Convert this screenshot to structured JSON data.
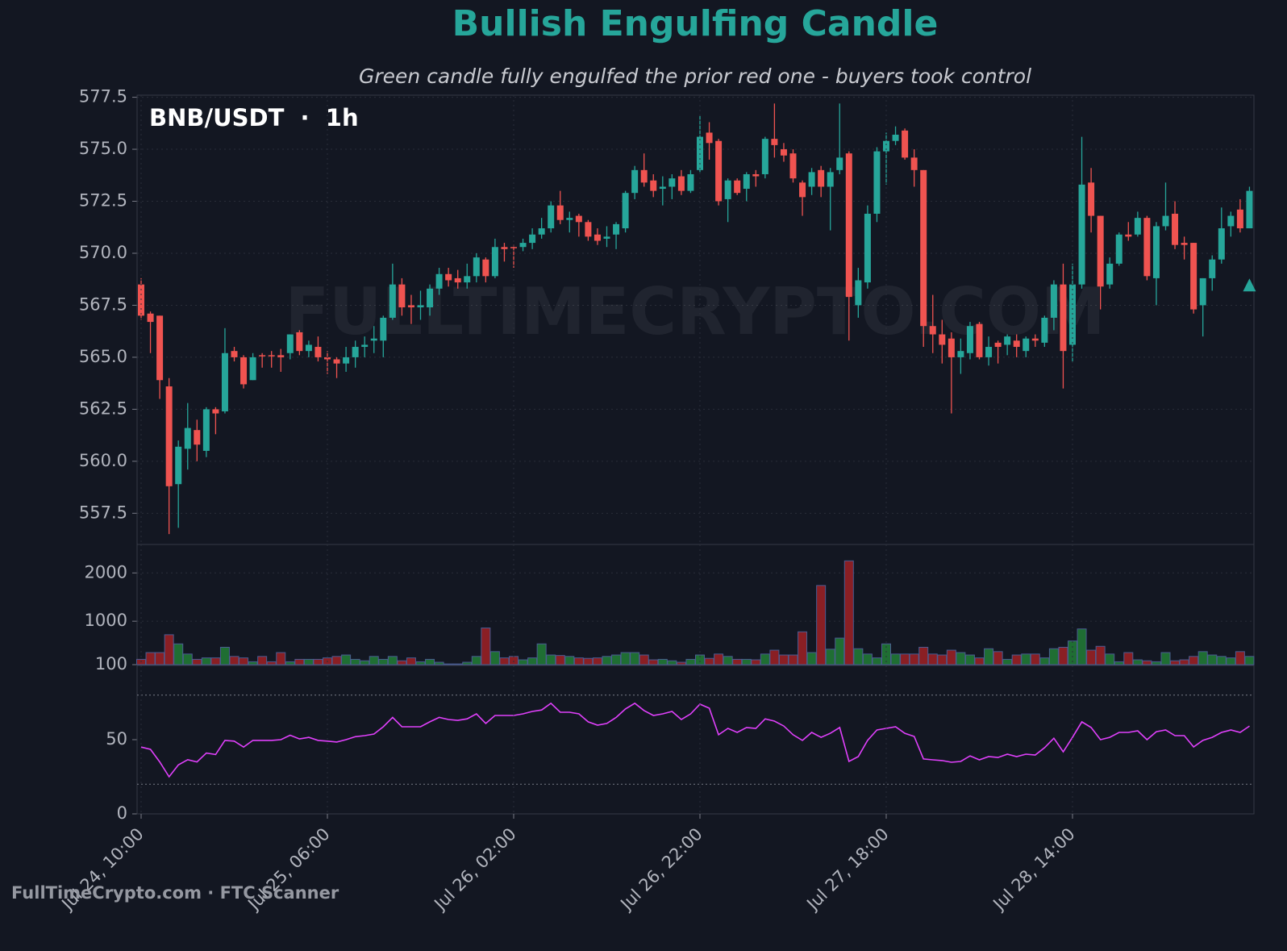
{
  "title": "Bullish Engulfing Candle",
  "subtitle": "Green candle fully engulfed the prior red one - buyers took control",
  "footer": "FullTimeCrypto.com · FTC Scanner",
  "chart_data": [
    {
      "type": "candlestick",
      "label": "BNB/USDT  ·  1h",
      "watermark": "FULLTIMECRYPTO.COM",
      "open": [
        568.5,
        567.1,
        567.0,
        563.6,
        558.9,
        560.6,
        561.5,
        560.5,
        562.5,
        562.4,
        565.3,
        565.0,
        563.9,
        565.1,
        565.1,
        565.1,
        565.2,
        566.2,
        565.3,
        565.5,
        565.0,
        564.9,
        564.7,
        565.0,
        565.5,
        565.8,
        565.8,
        566.9,
        568.5,
        567.5,
        567.4,
        567.4,
        568.3,
        569.0,
        568.8,
        568.6,
        568.9,
        569.7,
        568.9,
        570.3,
        570.3,
        570.3,
        570.5,
        570.9,
        571.2,
        572.3,
        571.6,
        571.8,
        571.5,
        570.9,
        570.7,
        570.9,
        571.2,
        572.9,
        574.0,
        573.5,
        573.1,
        573.2,
        573.7,
        573.0,
        574.0,
        575.8,
        575.4,
        572.6,
        573.5,
        573.1,
        573.8,
        573.8,
        575.5,
        575.0,
        574.8,
        573.4,
        573.2,
        574.0,
        573.2,
        574.0,
        574.8,
        567.5,
        568.6,
        571.9,
        574.9,
        575.4,
        575.9,
        574.6,
        574.0,
        566.5,
        566.1,
        565.9,
        565.0,
        565.2,
        566.6,
        565.0,
        565.7,
        565.6,
        565.8,
        565.3,
        565.9,
        565.7,
        566.9,
        568.5,
        565.6,
        568.5,
        573.4,
        571.8,
        568.5,
        569.5,
        570.9,
        570.9,
        571.7,
        568.8,
        571.3,
        571.9,
        570.5,
        570.5,
        567.5,
        568.8,
        569.7,
        571.3,
        572.1,
        571.2
      ],
      "high": [
        568.8,
        567.2,
        567.0,
        564.0,
        561.0,
        562.8,
        562.0,
        562.6,
        562.6,
        566.4,
        565.5,
        565.1,
        565.2,
        565.2,
        565.3,
        565.4,
        566.1,
        566.3,
        565.8,
        566.0,
        565.3,
        565.0,
        565.5,
        565.8,
        566.0,
        566.5,
        567.0,
        569.5,
        568.8,
        568.0,
        568.2,
        568.5,
        569.3,
        569.3,
        569.2,
        569.5,
        570.0,
        569.8,
        570.7,
        570.5,
        570.4,
        570.7,
        571.2,
        571.7,
        572.5,
        573.0,
        572.0,
        571.9,
        571.6,
        571.2,
        571.3,
        571.5,
        573.0,
        574.2,
        574.8,
        573.8,
        573.7,
        573.8,
        574.0,
        574.0,
        576.6,
        576.3,
        575.5,
        573.6,
        573.6,
        573.9,
        574.0,
        575.6,
        577.2,
        575.3,
        575.0,
        573.5,
        574.1,
        574.2,
        574.1,
        577.2,
        574.9,
        569.3,
        572.3,
        575.1,
        575.8,
        576.1,
        576.0,
        575.0,
        574.0,
        568.0,
        566.8,
        566.2,
        565.9,
        566.7,
        566.7,
        566.0,
        565.8,
        566.1,
        566.1,
        566.0,
        566.1,
        567.0,
        568.7,
        569.5,
        569.5,
        575.6,
        574.1,
        571.8,
        569.8,
        571.0,
        571.5,
        572.0,
        571.8,
        571.5,
        573.4,
        572.5,
        570.8,
        570.5,
        568.8,
        569.9,
        572.2,
        572.0,
        572.6,
        573.2
      ],
      "low": [
        566.8,
        565.2,
        563.0,
        556.5,
        556.8,
        559.6,
        560.0,
        560.2,
        561.3,
        562.3,
        564.8,
        563.5,
        563.9,
        564.5,
        564.5,
        564.3,
        564.9,
        565.1,
        565.0,
        564.8,
        564.2,
        564.0,
        564.3,
        564.5,
        565.0,
        565.2,
        565.0,
        566.8,
        567.0,
        566.6,
        566.8,
        567.0,
        568.0,
        568.4,
        568.3,
        568.3,
        568.6,
        568.6,
        568.8,
        569.6,
        569.3,
        570.1,
        570.2,
        570.7,
        571.0,
        571.4,
        571.0,
        570.8,
        570.6,
        570.4,
        570.3,
        570.2,
        571.0,
        572.6,
        573.2,
        572.7,
        572.3,
        572.6,
        572.8,
        572.9,
        573.9,
        574.5,
        572.3,
        571.5,
        572.8,
        572.5,
        573.2,
        573.6,
        574.6,
        574.4,
        573.4,
        571.8,
        572.8,
        572.7,
        571.1,
        573.8,
        565.8,
        566.9,
        568.3,
        571.5,
        573.3,
        575.2,
        574.5,
        573.2,
        565.5,
        565.2,
        564.7,
        562.3,
        564.2,
        564.9,
        564.9,
        564.6,
        564.7,
        565.1,
        565.0,
        565.0,
        565.5,
        565.5,
        566.3,
        563.5,
        564.8,
        568.3,
        571.0,
        567.3,
        568.3,
        569.4,
        570.6,
        570.8,
        568.7,
        567.5,
        571.1,
        570.2,
        569.7,
        567.1,
        566.0,
        568.2,
        569.5,
        570.8,
        571.0,
        571.2
      ],
      "close": [
        567.0,
        566.7,
        563.9,
        558.8,
        560.7,
        561.6,
        560.8,
        562.5,
        562.3,
        565.2,
        565.0,
        563.7,
        565.0,
        565.05,
        565.05,
        565.0,
        566.1,
        565.3,
        565.6,
        565.0,
        564.9,
        564.7,
        565.0,
        565.5,
        565.6,
        565.9,
        566.9,
        568.5,
        567.4,
        567.4,
        567.5,
        568.3,
        569.0,
        568.7,
        568.6,
        568.9,
        569.8,
        568.9,
        570.3,
        570.2,
        570.25,
        570.5,
        570.9,
        571.2,
        572.3,
        571.6,
        571.7,
        571.5,
        570.8,
        570.6,
        570.8,
        571.4,
        572.9,
        574.0,
        573.4,
        573.0,
        573.2,
        573.6,
        573.0,
        573.8,
        575.6,
        575.3,
        572.5,
        573.5,
        572.9,
        573.8,
        573.7,
        575.5,
        575.2,
        574.7,
        573.6,
        572.7,
        573.9,
        573.2,
        573.9,
        574.6,
        567.9,
        568.7,
        571.9,
        574.9,
        575.4,
        575.7,
        574.6,
        574.0,
        566.5,
        566.1,
        565.6,
        565.0,
        565.3,
        566.5,
        565.0,
        565.5,
        565.5,
        566.0,
        565.5,
        565.9,
        565.8,
        566.9,
        568.5,
        565.3,
        568.5,
        573.3,
        571.8,
        568.4,
        569.5,
        570.9,
        570.8,
        571.7,
        568.9,
        571.3,
        571.8,
        570.4,
        570.4,
        567.3,
        568.8,
        569.7,
        571.2,
        571.8,
        571.2,
        573.0
      ],
      "up_color": "#26a69a",
      "down_color": "#ef5350",
      "ylim": [
        556,
        577.6
      ],
      "yticks": [
        557.5,
        {
          "value": 560,
          "label": "560.0"
        },
        562.5,
        {
          "value": 565,
          "label": "565.0"
        },
        567.5,
        {
          "value": 570,
          "label": "570.0"
        },
        572.5,
        {
          "value": 575,
          "label": "575.0"
        },
        577.5
      ],
      "grid": true,
      "marker_value": 568.4
    },
    {
      "type": "bar",
      "values": [
        210,
        350,
        350,
        720,
        530,
        320,
        210,
        240,
        240,
        460,
        270,
        240,
        160,
        270,
        160,
        350,
        160,
        210,
        210,
        210,
        240,
        270,
        300,
        210,
        180,
        270,
        210,
        270,
        180,
        240,
        160,
        210,
        150,
        115,
        115,
        150,
        270,
        860,
        370,
        240,
        270,
        200,
        240,
        530,
        300,
        290,
        270,
        240,
        230,
        240,
        270,
        300,
        350,
        350,
        300,
        200,
        210,
        180,
        150,
        210,
        300,
        230,
        320,
        270,
        210,
        210,
        200,
        320,
        400,
        300,
        300,
        780,
        350,
        1740,
        420,
        650,
        2250,
        430,
        320,
        240,
        530,
        320,
        320,
        320,
        460,
        320,
        300,
        400,
        350,
        300,
        240,
        430,
        370,
        210,
        300,
        320,
        320,
        240,
        430,
        460,
        590,
        840,
        400,
        480,
        320,
        160,
        350,
        200,
        180,
        160,
        350,
        180,
        200,
        270,
        370,
        300,
        270,
        240,
        370,
        270
      ],
      "up_color": "#1f6e33",
      "down_color": "#8a1f24",
      "edge_color": "#4a5c92",
      "ylim": [
        100,
        2590
      ],
      "yticks": [
        100,
        1000,
        2000
      ],
      "grid": true
    },
    {
      "type": "line",
      "categories": [
        "Jul 24, 10:00",
        null,
        null,
        null,
        null,
        null,
        null,
        null,
        null,
        null,
        null,
        null,
        null,
        null,
        null,
        null,
        null,
        null,
        null,
        null,
        "Jul 25, 06:00",
        null,
        null,
        null,
        null,
        null,
        null,
        null,
        null,
        null,
        null,
        null,
        null,
        null,
        null,
        null,
        null,
        null,
        null,
        null,
        "Jul 26, 02:00",
        null,
        null,
        null,
        null,
        null,
        null,
        null,
        null,
        null,
        null,
        null,
        null,
        null,
        null,
        null,
        null,
        null,
        null,
        null,
        "Jul 26, 22:00",
        null,
        null,
        null,
        null,
        null,
        null,
        null,
        null,
        null,
        null,
        null,
        null,
        null,
        null,
        null,
        null,
        null,
        null,
        null,
        "Jul 27, 18:00",
        null,
        null,
        null,
        null,
        null,
        null,
        null,
        null,
        null,
        null,
        null,
        null,
        null,
        null,
        null,
        null,
        null,
        null,
        null,
        "Jul 28, 14:00",
        null,
        null,
        null,
        null,
        null,
        null,
        null,
        null,
        null,
        null,
        null,
        null,
        null,
        null,
        null,
        null,
        null,
        null,
        null
      ],
      "values": [
        45,
        43.5,
        35,
        25,
        33,
        36.5,
        35,
        41,
        40,
        49.5,
        49,
        45,
        49.5,
        49.5,
        49.5,
        50,
        53,
        50.5,
        51.6,
        49.5,
        49,
        48.4,
        50,
        52,
        52.7,
        53.8,
        58.7,
        65,
        58.7,
        58.7,
        58.7,
        62,
        65,
        63.6,
        63,
        64,
        67.4,
        60.9,
        66.3,
        66.3,
        66.3,
        67.4,
        69,
        70,
        74.5,
        68.5,
        68.5,
        67.4,
        62,
        59.8,
        60.9,
        65,
        70.7,
        74.5,
        69.6,
        66.3,
        67.4,
        69,
        63.6,
        67.4,
        73.9,
        71.2,
        53.3,
        57.6,
        54.9,
        58.2,
        57.6,
        64,
        62.5,
        59.2,
        53.3,
        49.5,
        54.9,
        51.6,
        54.3,
        58.2,
        35.3,
        38.6,
        49.5,
        56.5,
        57.6,
        58.7,
        54.3,
        52.2,
        37,
        36.4,
        35.9,
        34.8,
        35.3,
        39.1,
        36.4,
        38.6,
        38,
        40.2,
        38.6,
        40.2,
        39.7,
        44.6,
        51,
        41.8,
        51.6,
        62,
        58.2,
        50,
        51.6,
        54.9,
        54.9,
        56,
        50,
        55.4,
        56.5,
        52.7,
        52.7,
        45.1,
        49.5,
        51.6,
        54.9,
        56.5,
        54.9,
        59.2
      ],
      "color": "#e040fb",
      "ylim": [
        0,
        100
      ],
      "yticks": [
        0,
        50
      ],
      "levels": [
        20,
        80
      ]
    }
  ]
}
